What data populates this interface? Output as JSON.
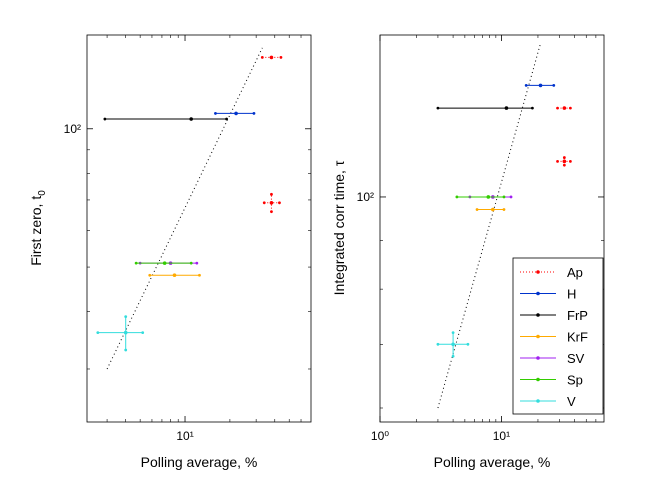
{
  "colors": {
    "Ap": "#ff0000",
    "H": "#0033cc",
    "FrP": "#000000",
    "KrF": "#ffaa00",
    "SV": "#a020f0",
    "Sp": "#33cc00",
    "V": "#33dddd"
  },
  "chart_data": [
    {
      "type": "scatter",
      "xlabel": "Polling average, %",
      "ylabel": "First zero, t",
      "ylabel_subscript": "0",
      "xscale": "log",
      "yscale": "log",
      "xlim": [
        2.2,
        70
      ],
      "ylim": [
        23,
        160
      ],
      "x_ticks": [
        10
      ],
      "x_tick_labels": [
        "10¹"
      ],
      "y_ticks": [
        100
      ],
      "y_tick_labels": [
        "10²"
      ],
      "grid": false,
      "fit_line": {
        "style": "dotted",
        "points": [
          [
            3,
            30
          ],
          [
            33,
            150
          ]
        ]
      },
      "series": [
        {
          "name": "Ap",
          "style": "dotted-x",
          "points": [
            {
              "x": 38,
              "xerr": [
                33,
                44
              ],
              "y": 143
            },
            {
              "x": 38,
              "xerr": [
                34,
                43
              ],
              "y": 69,
              "yerr": [
                66,
                72
              ]
            }
          ]
        },
        {
          "name": "H",
          "points": [
            {
              "x": 22,
              "xerr": [
                16,
                29
              ],
              "y": 108
            }
          ]
        },
        {
          "name": "FrP",
          "points": [
            {
              "x": 11,
              "xerr": [
                2.9,
                19
              ],
              "y": 105
            }
          ]
        },
        {
          "name": "KrF",
          "points": [
            {
              "x": 8.5,
              "xerr": [
                5.8,
                12.5
              ],
              "y": 48
            }
          ]
        },
        {
          "name": "SV",
          "points": [
            {
              "x": 8,
              "xerr": [
                5,
                12
              ],
              "y": 51
            }
          ]
        },
        {
          "name": "Sp",
          "points": [
            {
              "x": 7.3,
              "xerr": [
                4.7,
                11
              ],
              "y": 51
            }
          ]
        },
        {
          "name": "V",
          "points": [
            {
              "x": 4,
              "xerr": [
                2.6,
                5.2
              ],
              "y": 36,
              "yerr": [
                33,
                39
              ]
            }
          ]
        }
      ]
    },
    {
      "type": "scatter",
      "xlabel": "Polling average, %",
      "ylabel": "Integrated corr time, τ",
      "xscale": "log",
      "yscale": "log",
      "xlim": [
        1,
        70
      ],
      "ylim": [
        58,
        148
      ],
      "x_ticks": [
        1,
        10
      ],
      "x_tick_labels": [
        "10⁰",
        "10¹"
      ],
      "y_ticks": [
        100
      ],
      "y_tick_labels": [
        "10²"
      ],
      "grid": false,
      "legend": "lower-right",
      "fit_line": {
        "style": "dotted",
        "points": [
          [
            3,
            60
          ],
          [
            21,
            145
          ]
        ]
      },
      "series": [
        {
          "name": "Ap",
          "style": "dotted-x",
          "points": [
            {
              "x": 33,
              "xerr": [
                29,
                37
              ],
              "y": 124
            },
            {
              "x": 33,
              "xerr": [
                29,
                37
              ],
              "y": 109,
              "yerr": [
                108,
                110
              ]
            }
          ]
        },
        {
          "name": "H",
          "points": [
            {
              "x": 21,
              "xerr": [
                16,
                27
              ],
              "y": 131
            }
          ]
        },
        {
          "name": "FrP",
          "points": [
            {
              "x": 11,
              "xerr": [
                3,
                18
              ],
              "y": 124
            }
          ]
        },
        {
          "name": "KrF",
          "points": [
            {
              "x": 8.5,
              "xerr": [
                6.3,
                10.5
              ],
              "y": 97
            }
          ]
        },
        {
          "name": "SV",
          "points": [
            {
              "x": 8.5,
              "xerr": [
                5.5,
                12
              ],
              "y": 100
            }
          ]
        },
        {
          "name": "Sp",
          "points": [
            {
              "x": 7.8,
              "xerr": [
                4.3,
                10.5
              ],
              "y": 100
            }
          ]
        },
        {
          "name": "V",
          "points": [
            {
              "x": 4,
              "xerr": [
                3,
                5.3
              ],
              "y": 70,
              "yerr": [
                68,
                72
              ]
            }
          ]
        }
      ]
    }
  ]
}
